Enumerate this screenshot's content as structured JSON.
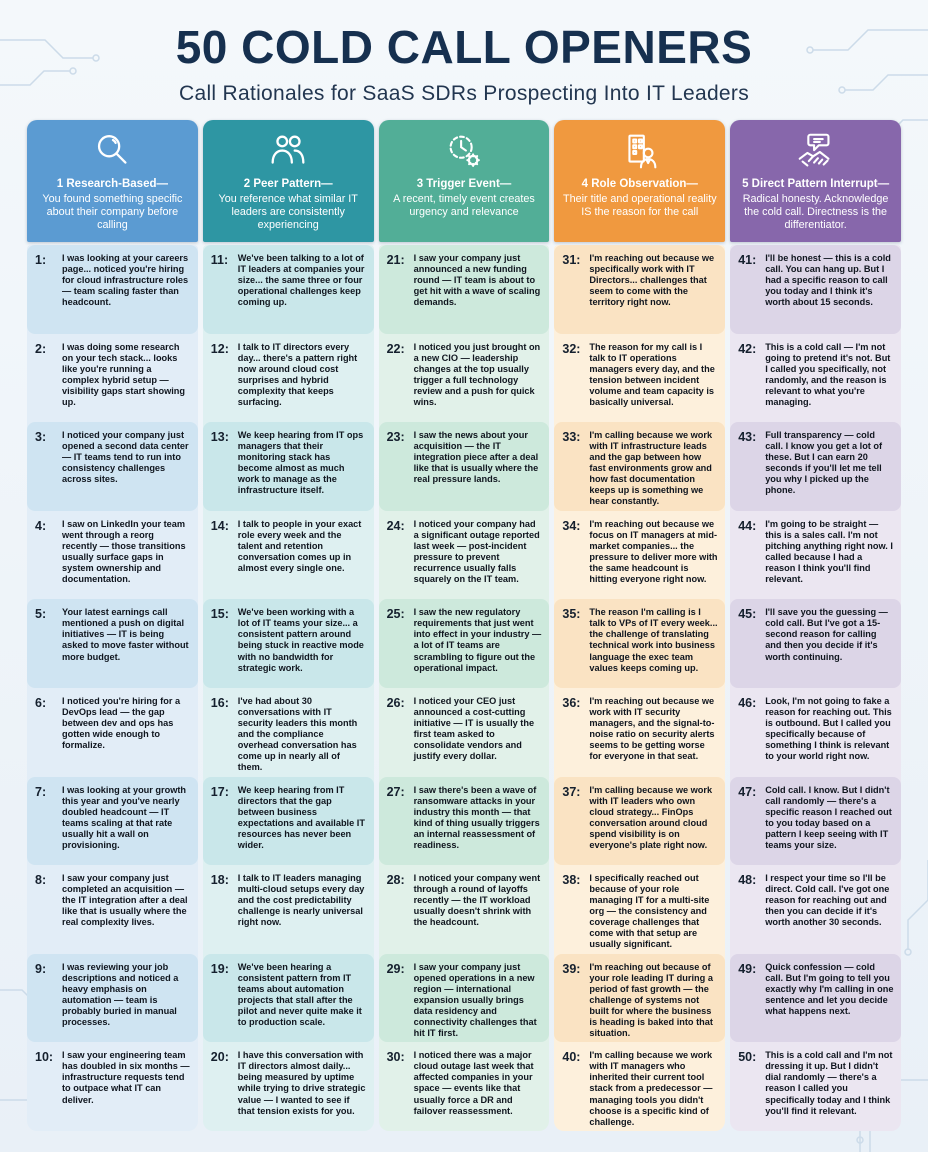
{
  "title": "50 COLD CALL OPENERS",
  "subtitle": "Call Rationales for SaaS SDRs Prospecting Into IT Leaders",
  "columns": [
    {
      "icon": "magnifier-icon",
      "header_color": "#5b9bd2",
      "row_color_dark": "#cfe4f2",
      "row_color_light": "#e2edf7",
      "label": "1 Research-Based—",
      "description": "You found something specific about their company before calling",
      "items": [
        {
          "num": "1:",
          "text": "I was looking at your careers page... noticed you're hiring for cloud infrastructure roles — team scaling faster than headcount."
        },
        {
          "num": "2:",
          "text": "I was doing some research on your tech stack... looks like you're running a complex hybrid setup — visibility gaps start showing up."
        },
        {
          "num": "3:",
          "text": "I noticed your company just opened a second data center — IT teams tend to run into consistency challenges across sites."
        },
        {
          "num": "4:",
          "text": "I saw on LinkedIn your team went through a reorg recently — those transitions usually surface gaps in system ownership and documentation."
        },
        {
          "num": "5:",
          "text": "Your latest earnings call mentioned a push on digital initiatives — IT is being asked to move faster without more budget."
        },
        {
          "num": "6:",
          "text": "I noticed you're hiring for a DevOps lead — the gap between dev and ops has gotten wide enough to formalize."
        },
        {
          "num": "7:",
          "text": "I was looking at your growth this year and you've nearly doubled headcount — IT teams scaling at that rate usually hit a wall on provisioning."
        },
        {
          "num": "8:",
          "text": "I saw your company just completed an acquisition — the IT integration after a deal like that is usually where the real complexity lives."
        },
        {
          "num": "9:",
          "text": "I was reviewing your job descriptions and noticed a heavy emphasis on automation — team is probably buried in manual processes."
        },
        {
          "num": "10:",
          "text": "I saw your engineering team has doubled in six months — infrastructure requests tend to outpace what IT can deliver."
        }
      ]
    },
    {
      "icon": "people-icon",
      "header_color": "#2e96a3",
      "row_color_dark": "#c9e7ea",
      "row_color_light": "#def0f1",
      "label": "2 Peer Pattern—",
      "description": "You reference what similar IT leaders are consistently experiencing",
      "items": [
        {
          "num": "11:",
          "text": "We've been talking to a lot of IT leaders at companies your size... the same three or four operational challenges keep coming up."
        },
        {
          "num": "12:",
          "text": "I talk to IT directors every day... there's a pattern right now around cloud cost surprises and hybrid complexity that keeps surfacing."
        },
        {
          "num": "13:",
          "text": "We keep hearing from IT ops managers that their monitoring stack has become almost as much work to manage as the infrastructure itself."
        },
        {
          "num": "14:",
          "text": "I talk to people in your exact role every week and the talent and retention conversation comes up in almost every single one."
        },
        {
          "num": "15:",
          "text": "We've been working with a lot of IT teams your size... a consistent pattern around being stuck in reactive mode with no bandwidth for strategic work."
        },
        {
          "num": "16:",
          "text": "I've had about 30 conversations with IT security leaders this month and the compliance overhead conversation has come up in nearly all of them."
        },
        {
          "num": "17:",
          "text": "We keep hearing from IT directors that the gap between business expectations and available IT resources has never been wider."
        },
        {
          "num": "18:",
          "text": "I talk to IT leaders managing multi-cloud setups every day and the cost predictability challenge is nearly universal right now."
        },
        {
          "num": "19:",
          "text": "We've been hearing a consistent pattern from IT teams about automation projects that stall after the pilot and never quite make it to production scale."
        },
        {
          "num": "20:",
          "text": "I have this conversation with IT directors almost daily... being measured by uptime while trying to drive strategic value — I wanted to see if that tension exists for you."
        }
      ]
    },
    {
      "icon": "clock-gear-icon",
      "header_color": "#52ae97",
      "row_color_dark": "#cde9dc",
      "row_color_light": "#e1f1e9",
      "label": "3 Trigger Event—",
      "description": "A recent, timely event creates urgency and relevance",
      "items": [
        {
          "num": "21:",
          "text": "I saw your company just announced a new funding round — IT team is about to get hit with a wave of scaling demands."
        },
        {
          "num": "22:",
          "text": "I noticed you just brought on a new CIO — leadership changes at the top usually trigger a full technology review and a push for quick wins."
        },
        {
          "num": "23:",
          "text": "I saw the news about your acquisition — the IT integration piece after a deal like that is usually where the real pressure lands."
        },
        {
          "num": "24:",
          "text": "I noticed your company had a significant outage reported last week — post-incident pressure to prevent recurrence usually falls squarely on the IT team."
        },
        {
          "num": "25:",
          "text": "I saw the new regulatory requirements that just went into effect in your industry — a lot of IT teams are scrambling to figure out the operational impact."
        },
        {
          "num": "26:",
          "text": "I noticed your CEO just announced a cost-cutting initiative — IT is usually the first team asked to consolidate vendors and justify every dollar."
        },
        {
          "num": "27:",
          "text": "I saw there's been a wave of ransomware attacks in your industry this month — that kind of thing usually triggers an internal reassessment of readiness."
        },
        {
          "num": "28:",
          "text": "I noticed your company went through a round of layoffs recently — the IT workload usually doesn't shrink with the headcount."
        },
        {
          "num": "29:",
          "text": "I saw your company just opened operations in a new region — international expansion usually brings data residency and connectivity challenges that hit IT first."
        },
        {
          "num": "30:",
          "text": "I noticed there was a major cloud outage last week that affected companies in your space — events like that usually force a DR and failover reassessment."
        }
      ]
    },
    {
      "icon": "building-person-icon",
      "header_color": "#f0993f",
      "row_color_dark": "#fae3c3",
      "row_color_light": "#fdf0dc",
      "label": "4 Role Observation—",
      "description": "Their title and operational reality IS the reason for the call",
      "items": [
        {
          "num": "31:",
          "text": "I'm reaching out because we specifically work with IT Directors... challenges that seem to come with the territory right now."
        },
        {
          "num": "32:",
          "text": "The reason for my call is I talk to IT operations managers every day, and the tension between incident volume and team capacity is basically universal."
        },
        {
          "num": "33:",
          "text": "I'm calling because we work with IT infrastructure leads and the gap between how fast environments grow and how fast documentation keeps up is something we hear constantly."
        },
        {
          "num": "34:",
          "text": "I'm reaching out because we focus on IT managers at mid-market companies... the pressure to deliver more with the same headcount is hitting everyone right now."
        },
        {
          "num": "35:",
          "text": "The reason I'm calling is I talk to VPs of IT every week... the challenge of translating technical work into business language the exec team values keeps coming up."
        },
        {
          "num": "36:",
          "text": "I'm reaching out because we work with IT security managers, and the signal-to-noise ratio on security alerts seems to be getting worse for everyone in that seat."
        },
        {
          "num": "37:",
          "text": "I'm calling because we work with IT leaders who own cloud strategy... FinOps conversation around cloud spend visibility is on everyone's plate right now."
        },
        {
          "num": "38:",
          "text": "I specifically reached out because of your role managing IT for a multi-site org — the consistency and coverage challenges that come with that setup are usually significant."
        },
        {
          "num": "39:",
          "text": "I'm reaching out because of your role leading IT during a period of fast growth — the challenge of systems not built for where the business is heading is baked into that situation."
        },
        {
          "num": "40:",
          "text": "I'm calling because we work with IT managers who inherited their current tool stack from a predecessor — managing tools you didn't choose is a specific kind of challenge."
        }
      ]
    },
    {
      "icon": "handshake-icon",
      "header_color": "#8767ab",
      "row_color_dark": "#dcd5e7",
      "row_color_light": "#ebe6f1",
      "label": "5 Direct Pattern Interrupt—",
      "description": "Radical honesty. Acknowledge the cold call. Directness is the differentiator.",
      "items": [
        {
          "num": "41:",
          "text": "I'll be honest — this is a cold call. You can hang up. But I had a specific reason to call you today and I think it's worth about 15 seconds."
        },
        {
          "num": "42:",
          "text": "This is a cold call — I'm not going to pretend it's not. But I called you specifically, not randomly, and the reason is relevant to what you're managing."
        },
        {
          "num": "43:",
          "text": "Full transparency — cold call. I know you get a lot of these. But I can earn 20 seconds if you'll let me tell you why I picked up the phone."
        },
        {
          "num": "44:",
          "text": "I'm going to be straight — this is a sales call. I'm not pitching anything right now. I called because I had a reason I think you'll find relevant."
        },
        {
          "num": "45:",
          "text": "I'll save you the guessing — cold call. But I've got a 15-second reason for calling and then you decide if it's worth continuing."
        },
        {
          "num": "46:",
          "text": "Look, I'm not going to fake a reason for reaching out. This is outbound. But I called you specifically because of something I think is relevant to your world right now."
        },
        {
          "num": "47:",
          "text": "Cold call. I know. But I didn't call randomly — there's a specific reason I reached out to you today based on a pattern I keep seeing with IT teams your size."
        },
        {
          "num": "48:",
          "text": "I respect your time so I'll be direct. Cold call. I've got one reason for reaching out and then you can decide if it's worth another 30 seconds."
        },
        {
          "num": "49:",
          "text": "Quick confession — cold call. But I'm going to tell you exactly why I'm calling in one sentence and let you decide what happens next."
        },
        {
          "num": "50:",
          "text": "This is a cold call and I'm not dressing it up. But I didn't dial randomly — there's a reason I called you specifically today and I think you'll find it relevant."
        }
      ]
    }
  ]
}
